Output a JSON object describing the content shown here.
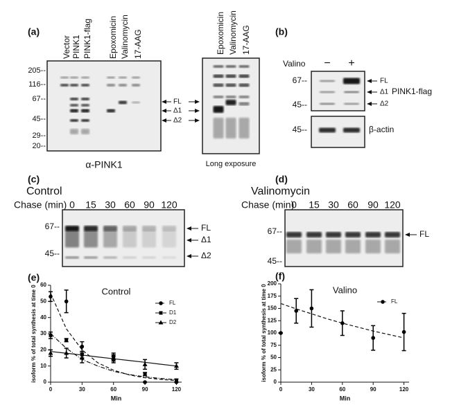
{
  "panel_a": {
    "label": "(a)",
    "lanes": [
      "Vector",
      "PINK1",
      "PINK1-flag",
      "Epoxomicin",
      "Valinomycin",
      "17-AAG"
    ],
    "lanes_long": [
      "Epoxomicin",
      "Valinomycin",
      "17-AAG"
    ],
    "markers": [
      "205--",
      "116--",
      "67--",
      "45--",
      "29--",
      "20--"
    ],
    "arrows": [
      "FL",
      "Δ1",
      "Δ2"
    ],
    "caption": "α-PINK1",
    "caption_long": "Long exposure"
  },
  "panel_b": {
    "label": "(b)",
    "treatment": "Valino",
    "conditions": [
      "−",
      "+"
    ],
    "markers": [
      "67--",
      "45--"
    ],
    "arrows": [
      "FL",
      "Δ1",
      "Δ2"
    ],
    "protein": "PINK1-flag",
    "control_marker": "45--",
    "control_protein": "β-actin"
  },
  "panel_c": {
    "label": "(c)",
    "title": "Control",
    "chase": "Chase (min)",
    "times": [
      "0",
      "15",
      "30",
      "60",
      "90",
      "120"
    ],
    "markers": [
      "67--",
      "45--"
    ],
    "arrows": [
      "FL",
      "Δ1",
      "Δ2"
    ]
  },
  "panel_d": {
    "label": "(d)",
    "title": "Valinomycin",
    "chase": "Chase (min)",
    "times": [
      "0",
      "15",
      "30",
      "60",
      "90",
      "120"
    ],
    "markers": [
      "67--",
      "45--"
    ],
    "arrows": [
      "FL"
    ]
  },
  "chart_data": [
    {
      "panel_label": "(e)",
      "type": "line",
      "title": "Control",
      "x_label": "Min",
      "y_label": "isoform % of total synthesis at time 0",
      "xlim": [
        0,
        125
      ],
      "xticks": [
        0,
        30,
        60,
        90,
        120
      ],
      "ylim": [
        0,
        60
      ],
      "yticks": [
        0,
        10,
        20,
        30,
        40,
        50,
        60
      ],
      "series": [
        {
          "name": "FL",
          "color": "#000000",
          "marker": "circle",
          "x": [
            0,
            15,
            30,
            60,
            90,
            120
          ],
          "values": [
            53,
            50,
            22,
            14,
            0,
            0
          ],
          "errors": [
            3,
            7,
            3,
            2,
            0,
            0
          ]
        },
        {
          "name": "D1",
          "color": "#000000",
          "marker": "square",
          "x": [
            0,
            15,
            30,
            60,
            90,
            120
          ],
          "values": [
            29,
            26,
            17,
            16,
            5,
            1
          ],
          "errors": [
            2,
            1,
            2,
            2,
            1,
            1
          ]
        },
        {
          "name": "D2",
          "color": "#000000",
          "marker": "triangle",
          "x": [
            0,
            15,
            30,
            60,
            90,
            120
          ],
          "values": [
            18,
            18,
            15,
            15,
            11,
            10
          ],
          "errors": [
            2,
            3,
            3,
            2,
            3,
            2
          ]
        }
      ],
      "fits": [
        {
          "dash": "5,3",
          "x": [
            0,
            15,
            30,
            45,
            60,
            75,
            90,
            105,
            120
          ],
          "values": [
            55,
            33,
            20,
            12,
            7.4,
            4.5,
            2.7,
            1.7,
            1
          ]
        },
        {
          "dash": "6,2,1,2",
          "x": [
            0,
            15,
            30,
            45,
            60,
            75,
            90,
            105,
            120
          ],
          "values": [
            30,
            21,
            14,
            10,
            6.7,
            4.7,
            3.3,
            2.3,
            1.5
          ]
        },
        {
          "dash": "none",
          "x": [
            0,
            15,
            30,
            45,
            60,
            75,
            90,
            105,
            120
          ],
          "values": [
            19,
            17.9,
            16.8,
            15.6,
            14.5,
            13.4,
            12.3,
            11.1,
            10
          ]
        }
      ]
    },
    {
      "panel_label": "(f)",
      "type": "line",
      "title": "Valino",
      "x_label": "Min",
      "y_label": "isoform % of total synthesis at time 0",
      "xlim": [
        0,
        125
      ],
      "xticks": [
        0,
        30,
        60,
        90,
        120
      ],
      "ylim": [
        0,
        200
      ],
      "yticks": [
        0,
        25,
        50,
        75,
        100,
        125,
        150,
        175,
        200
      ],
      "series": [
        {
          "name": "FL",
          "color": "#000000",
          "marker": "circle",
          "x": [
            0,
            15,
            30,
            60,
            90,
            120
          ],
          "values": [
            100,
            145,
            150,
            120,
            90,
            102
          ],
          "errors": [
            0,
            25,
            38,
            25,
            25,
            38
          ]
        }
      ],
      "fits": [
        {
          "dash": "5,3",
          "x": [
            0,
            15,
            30,
            45,
            60,
            75,
            90,
            105,
            120
          ],
          "values": [
            160,
            149,
            139,
            129,
            120,
            112,
            104,
            97,
            90
          ]
        }
      ]
    }
  ]
}
